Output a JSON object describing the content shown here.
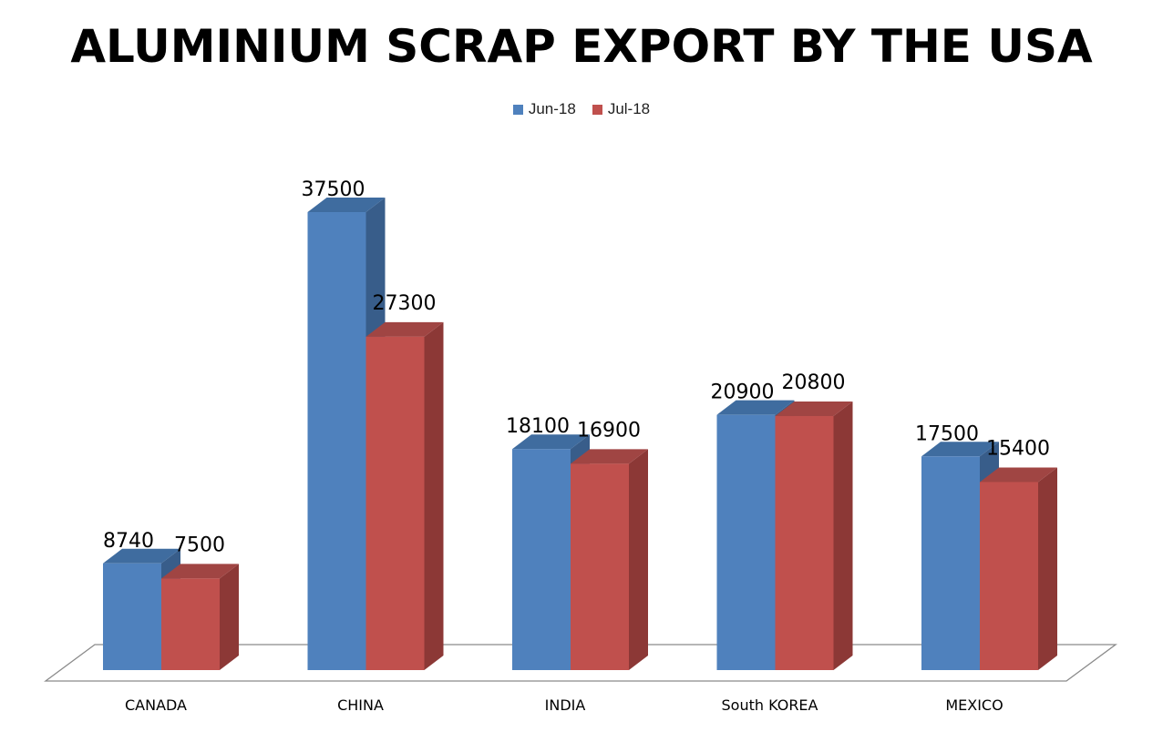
{
  "chart_data": {
    "type": "bar",
    "title": "ALUMINIUM SCRAP EXPORT BY THE USA",
    "categories": [
      "CANADA",
      "CHINA",
      "INDIA",
      "South KOREA",
      "MEXICO"
    ],
    "series": [
      {
        "name": "Jun-18",
        "values": [
          8740,
          37500,
          18100,
          20900,
          17500
        ],
        "color": "#4f81bd",
        "side_color": "#385d8a",
        "top_color": "#3f6c9f"
      },
      {
        "name": "Jul-18",
        "values": [
          7500,
          27300,
          16900,
          20800,
          15400
        ],
        "color": "#c0504d",
        "side_color": "#8c3836",
        "top_color": "#a04543"
      }
    ],
    "legend_position": "top",
    "grid": false,
    "style": "3d-clustered-column",
    "ylim": [
      0,
      37500
    ]
  }
}
